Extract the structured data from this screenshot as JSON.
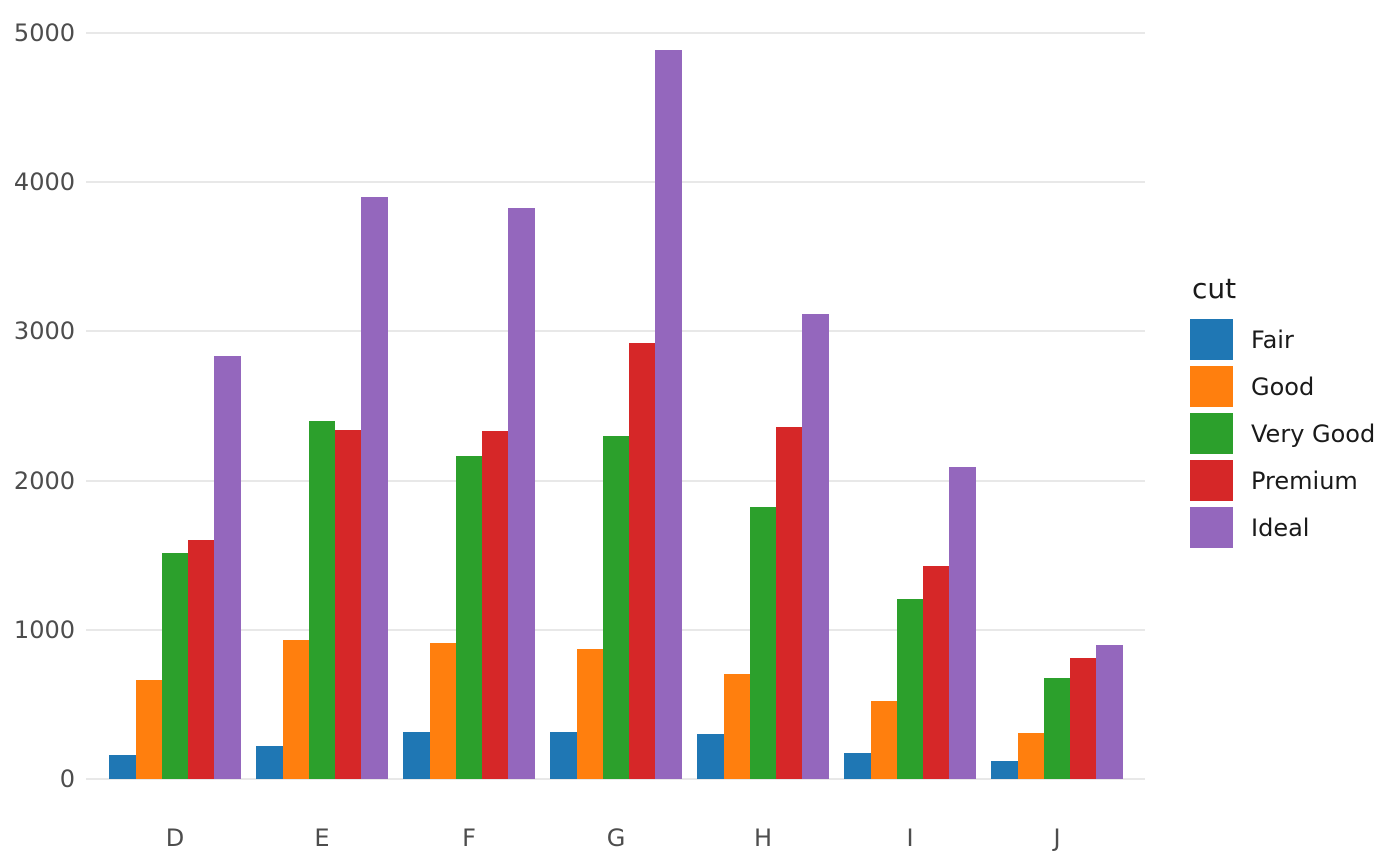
{
  "chart_data": {
    "type": "bar",
    "grouping": "grouped",
    "legend_title": "cut",
    "legend_position": "right",
    "categories": [
      "D",
      "E",
      "F",
      "G",
      "H",
      "I",
      "J"
    ],
    "series": [
      {
        "name": "Fair",
        "color": "#1f77b4",
        "values": [
          163,
          224,
          312,
          314,
          303,
          175,
          119
        ]
      },
      {
        "name": "Good",
        "color": "#ff7f0e",
        "values": [
          662,
          933,
          909,
          871,
          702,
          522,
          307
        ]
      },
      {
        "name": "Very Good",
        "color": "#2ca02c",
        "values": [
          1513,
          2400,
          2164,
          2299,
          1824,
          1204,
          678
        ]
      },
      {
        "name": "Premium",
        "color": "#d62728",
        "values": [
          1603,
          2337,
          2331,
          2924,
          2360,
          1428,
          808
        ]
      },
      {
        "name": "Ideal",
        "color": "#9467bd",
        "values": [
          2834,
          3903,
          3826,
          4884,
          3115,
          2093,
          896
        ]
      }
    ],
    "yticks": [
      0,
      1000,
      2000,
      3000,
      4000,
      5000
    ],
    "ylim": [
      0,
      5000
    ],
    "grid": "horizontal",
    "colors": {
      "background": "#ffffff",
      "gridline": "#e8e8e8",
      "tick_label": "#4d4d4d",
      "legend_text": "#1a1a1a"
    }
  }
}
